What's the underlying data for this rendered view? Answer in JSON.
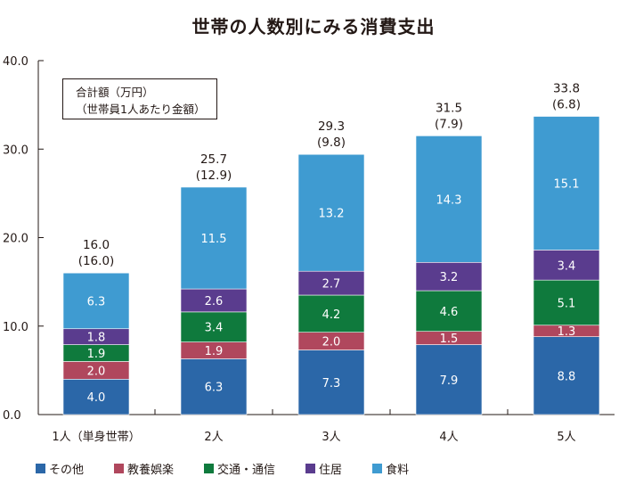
{
  "chart_data": {
    "type": "bar",
    "stacked": true,
    "title": "世帯の人数別にみる消費支出",
    "categories": [
      "1人（単身世帯）",
      "2人",
      "3人",
      "4人",
      "5人"
    ],
    "series": [
      {
        "name": "その他",
        "color": "#2b67a8",
        "values": [
          4.0,
          6.3,
          7.3,
          7.9,
          8.8
        ]
      },
      {
        "name": "教養娯楽",
        "color": "#b0475d",
        "values": [
          2.0,
          1.9,
          2.0,
          1.5,
          1.3
        ]
      },
      {
        "name": "交通・通信",
        "color": "#0f7a3d",
        "values": [
          1.9,
          3.4,
          4.2,
          4.6,
          5.1
        ]
      },
      {
        "name": "住居",
        "color": "#5a3c8e",
        "values": [
          1.8,
          2.6,
          2.7,
          3.2,
          3.4
        ]
      },
      {
        "name": "食料",
        "color": "#3f9bd1",
        "values": [
          6.3,
          11.5,
          13.2,
          14.3,
          15.1
        ]
      }
    ],
    "totals": [
      "16.0",
      "25.7",
      "29.3",
      "31.5",
      "33.8"
    ],
    "per_person": [
      "(16.0)",
      "(12.9)",
      "(9.8)",
      "(7.9)",
      "(6.8)"
    ],
    "segment_labels": [
      [
        "4.0",
        "2.0",
        "1.9",
        "1.8",
        "6.3"
      ],
      [
        "6.3",
        "1.9",
        "3.4",
        "2.6",
        "11.5"
      ],
      [
        "7.3",
        "2.0",
        "4.2",
        "2.7",
        "13.2"
      ],
      [
        "7.9",
        "1.5",
        "4.6",
        "3.2",
        "14.3"
      ],
      [
        "8.8",
        "1.3",
        "5.1",
        "3.4",
        "15.1"
      ]
    ],
    "ylim": [
      0,
      40
    ],
    "yticks": [
      "0.0",
      "10.0",
      "20.0",
      "30.0",
      "40.0"
    ],
    "xlabel": "",
    "ylabel": "",
    "note_lines": [
      "合計額（万円）",
      "（世帯員1人あたり金額）"
    ]
  }
}
